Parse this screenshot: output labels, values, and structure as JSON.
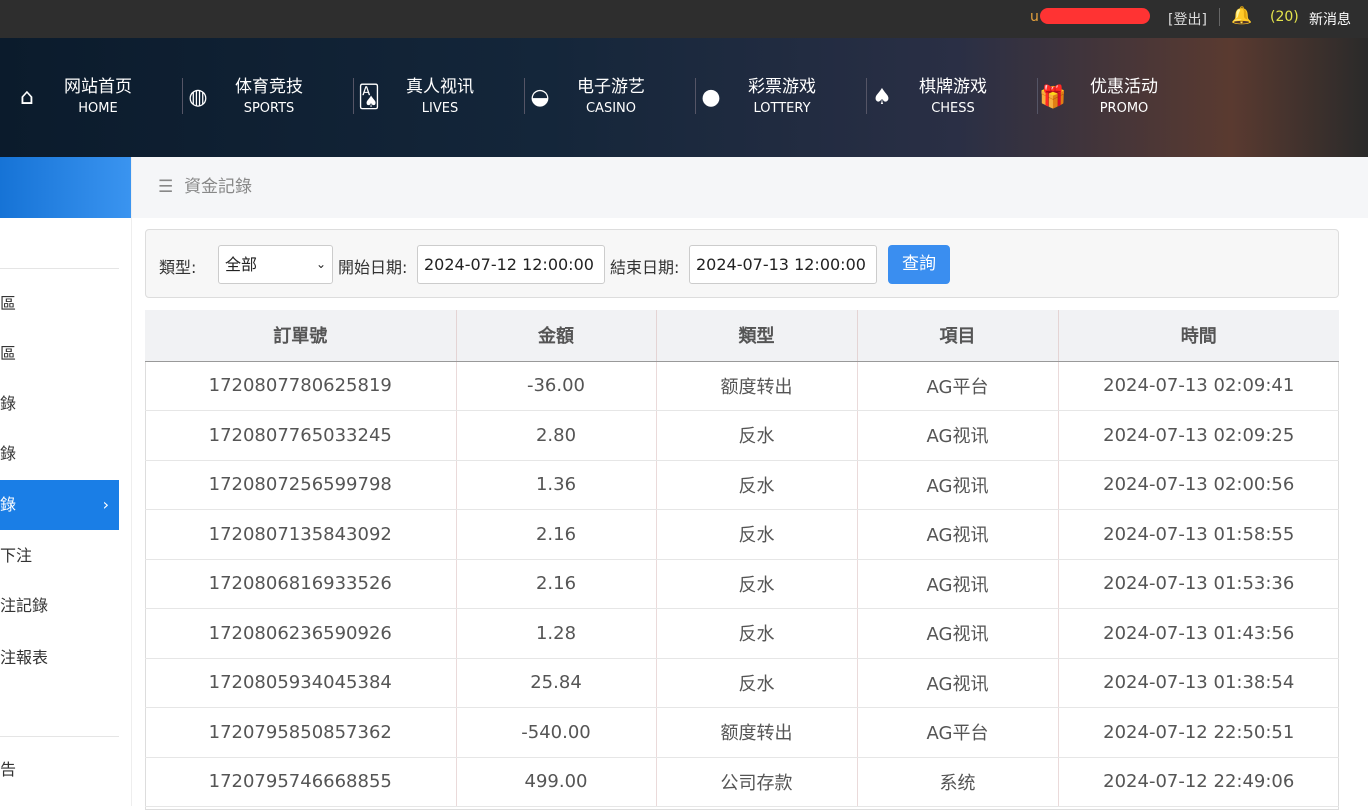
{
  "topbar": {
    "user": "u",
    "logout": "[登出]",
    "count": "(20)",
    "messages": "新消息"
  },
  "nav": [
    {
      "icon": "home-icon",
      "glyph": "⌂",
      "zh": "网站首页",
      "en": "HOME"
    },
    {
      "icon": "basketball-icon",
      "glyph": "◍",
      "zh": "体育竞技",
      "en": "SPORTS"
    },
    {
      "icon": "cards-icon",
      "glyph": "🂡",
      "zh": "真人视讯",
      "en": "LIVES"
    },
    {
      "icon": "slot-icon",
      "glyph": "◒",
      "zh": "电子游艺",
      "en": "CASINO"
    },
    {
      "icon": "balls-icon",
      "glyph": "●",
      "zh": "彩票游戏",
      "en": "LOTTERY"
    },
    {
      "icon": "spade-icon",
      "glyph": "♠",
      "zh": "棋牌游戏",
      "en": "CHESS"
    },
    {
      "icon": "gift-icon",
      "glyph": "🎁",
      "zh": "优惠活动",
      "en": "PROMO"
    }
  ],
  "sidebar": {
    "items": [
      "區",
      "區",
      "錄",
      "錄",
      "錄",
      "下注",
      "注記錄",
      "注報表",
      "告"
    ],
    "active_index": 4
  },
  "breadcrumb": "資金記錄",
  "filter": {
    "type_label": "類型:",
    "type_value": "全部",
    "start_label": "開始日期:",
    "start_value": "2024-07-12 12:00:00",
    "end_label": "結束日期:",
    "end_value": "2024-07-13 12:00:00",
    "query": "查詢"
  },
  "table": {
    "headers": [
      "訂單號",
      "金額",
      "類型",
      "項目",
      "時間"
    ],
    "rows": [
      [
        "1720807780625819",
        "-36.00",
        "额度转出",
        "AG平台",
        "2024-07-13 02:09:41"
      ],
      [
        "1720807765033245",
        "2.80",
        "反水",
        "AG视讯",
        "2024-07-13 02:09:25"
      ],
      [
        "1720807256599798",
        "1.36",
        "反水",
        "AG视讯",
        "2024-07-13 02:00:56"
      ],
      [
        "1720807135843092",
        "2.16",
        "反水",
        "AG视讯",
        "2024-07-13 01:58:55"
      ],
      [
        "1720806816933526",
        "2.16",
        "反水",
        "AG视讯",
        "2024-07-13 01:53:36"
      ],
      [
        "1720806236590926",
        "1.28",
        "反水",
        "AG视讯",
        "2024-07-13 01:43:56"
      ],
      [
        "1720805934045384",
        "25.84",
        "反水",
        "AG视讯",
        "2024-07-13 01:38:54"
      ],
      [
        "1720795850857362",
        "-540.00",
        "额度转出",
        "AG平台",
        "2024-07-12 22:50:51"
      ],
      [
        "1720795746668855",
        "499.00",
        "公司存款",
        "系统",
        "2024-07-12 22:49:06"
      ]
    ]
  },
  "colors": {
    "accent": "#1a7ee6",
    "button": "#3a8ef0"
  }
}
